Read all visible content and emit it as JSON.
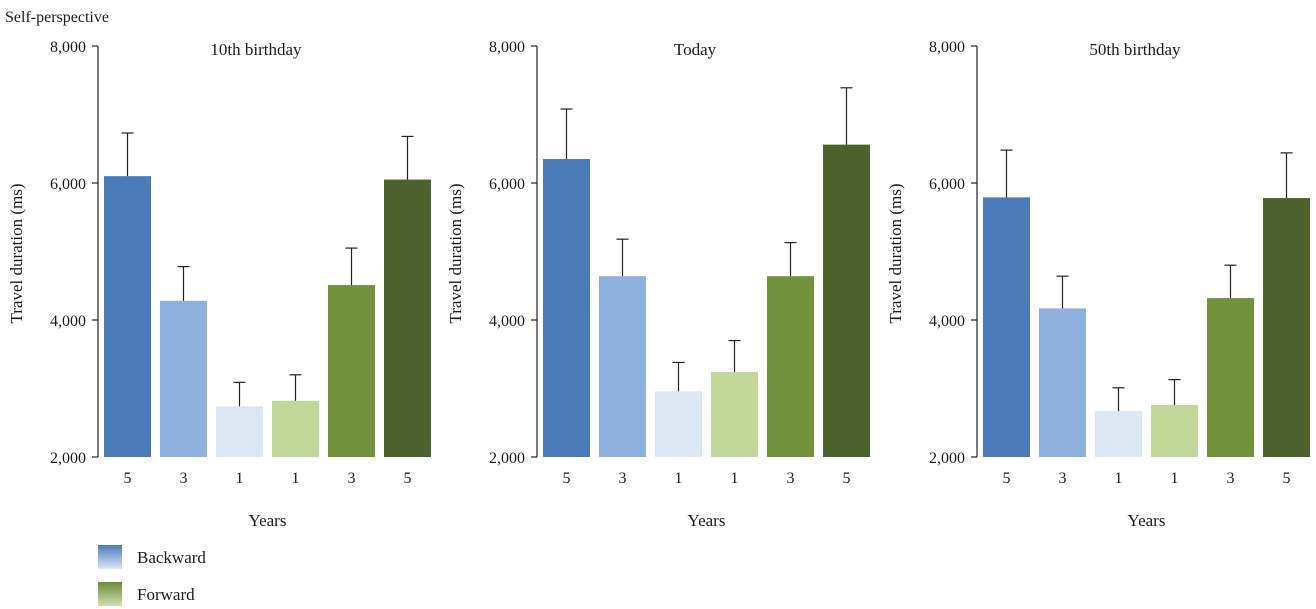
{
  "figure": {
    "heading": "Self-perspective",
    "legend": [
      {
        "label": "Backward",
        "color_top": "#4a7ab8",
        "color_bottom": "#dce7f4"
      },
      {
        "label": "Forward",
        "color_top": "#6a8c37",
        "color_bottom": "#cfe0b0"
      }
    ]
  },
  "chart_data": [
    {
      "type": "bar",
      "title": "10th birthday",
      "xlabel": "Years",
      "ylabel": "Travel duration (ms)",
      "ylim": [
        2000,
        8000
      ],
      "yticks": [
        2000,
        4000,
        6000,
        8000
      ],
      "ytick_labels": [
        "2,000",
        "4,000",
        "6,000",
        "8,000"
      ],
      "categories": [
        "5",
        "3",
        "1",
        "1",
        "3",
        "5"
      ],
      "groups": [
        "Backward",
        "Backward",
        "Backward",
        "Forward",
        "Forward",
        "Forward"
      ],
      "values": [
        6100,
        4280,
        2740,
        2820,
        4510,
        6050
      ],
      "errors": [
        630,
        500,
        350,
        380,
        540,
        630
      ],
      "colors": [
        "#4a7ab8",
        "#8eb0dc",
        "#dce7f4",
        "#c2d69a",
        "#72933c",
        "#4d612c"
      ]
    },
    {
      "type": "bar",
      "title": "Today",
      "xlabel": "Years",
      "ylabel": "Travel duration (ms)",
      "ylim": [
        2000,
        8000
      ],
      "yticks": [
        2000,
        4000,
        6000,
        8000
      ],
      "ytick_labels": [
        "2,000",
        "4,000",
        "6,000",
        "8,000"
      ],
      "categories": [
        "5",
        "3",
        "1",
        "1",
        "3",
        "5"
      ],
      "groups": [
        "Backward",
        "Backward",
        "Backward",
        "Forward",
        "Forward",
        "Forward"
      ],
      "values": [
        6350,
        4640,
        2960,
        3240,
        4640,
        6560
      ],
      "errors": [
        730,
        540,
        420,
        460,
        490,
        830
      ],
      "colors": [
        "#4a7ab8",
        "#8eb0dc",
        "#dce7f4",
        "#c2d69a",
        "#72933c",
        "#4d612c"
      ]
    },
    {
      "type": "bar",
      "title": "50th birthday",
      "xlabel": "Years",
      "ylabel": "Travel duration (ms)",
      "ylim": [
        2000,
        8000
      ],
      "yticks": [
        2000,
        4000,
        6000,
        8000
      ],
      "ytick_labels": [
        "2,000",
        "4,000",
        "6,000",
        "8,000"
      ],
      "categories": [
        "5",
        "3",
        "1",
        "1",
        "3",
        "5"
      ],
      "groups": [
        "Backward",
        "Backward",
        "Backward",
        "Forward",
        "Forward",
        "Forward"
      ],
      "values": [
        5790,
        4170,
        2670,
        2760,
        4320,
        5780
      ],
      "errors": [
        690,
        470,
        340,
        370,
        480,
        660
      ],
      "colors": [
        "#4a7ab8",
        "#8eb0dc",
        "#dce7f4",
        "#c2d69a",
        "#72933c",
        "#4d612c"
      ]
    }
  ]
}
